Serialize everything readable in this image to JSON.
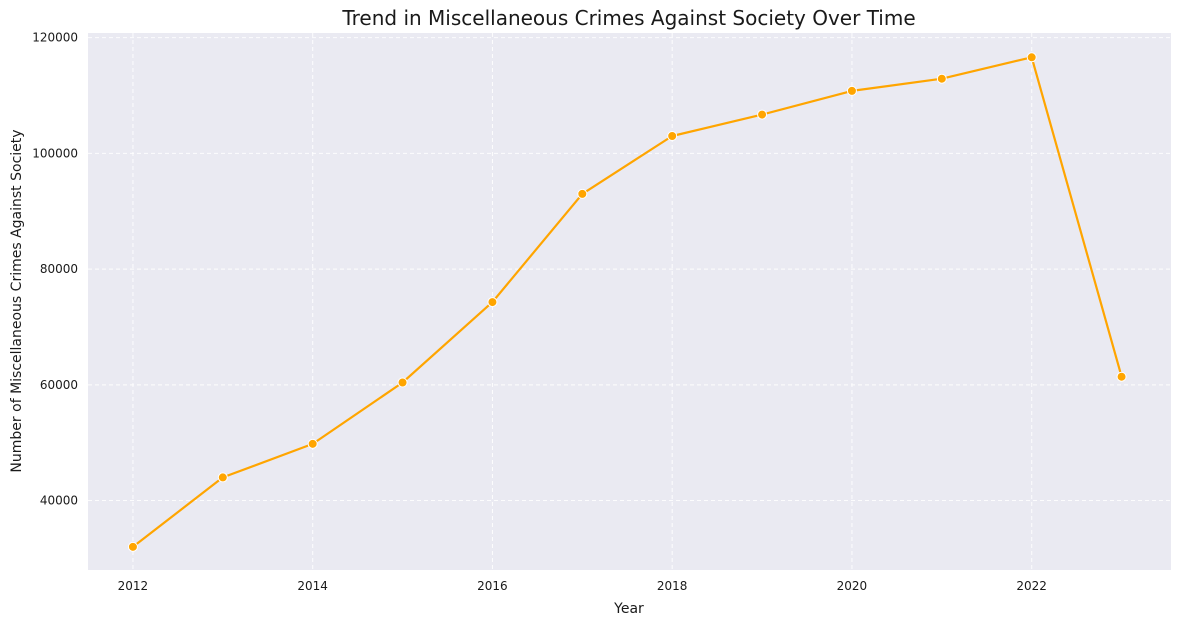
{
  "chart_data": {
    "type": "line",
    "title": "Trend in Miscellaneous Crimes Against Society Over Time",
    "xlabel": "Year",
    "ylabel": "Number of Miscellaneous Crimes Against Society",
    "x": [
      2012,
      2013,
      2014,
      2015,
      2016,
      2017,
      2018,
      2019,
      2020,
      2021,
      2022,
      2023
    ],
    "series": [
      {
        "values": [
          32000,
          44000,
          49800,
          60400,
          74300,
          93000,
          103000,
          106700,
          110800,
          112900,
          116600,
          61400
        ]
      }
    ],
    "xlim": [
      2011.5,
      2023.55
    ],
    "ylim": [
      28000,
      120800
    ],
    "x_ticks": [
      "2012",
      "2014",
      "2016",
      "2018",
      "2020",
      "2022"
    ],
    "y_ticks": [
      "40000",
      "60000",
      "80000",
      "100000",
      "120000"
    ],
    "grid": true,
    "colors": {
      "line": "#FFA500",
      "marker_edge": "#ffffff",
      "plot_background": "#EAEAF2",
      "grid": "#ffffff"
    }
  }
}
